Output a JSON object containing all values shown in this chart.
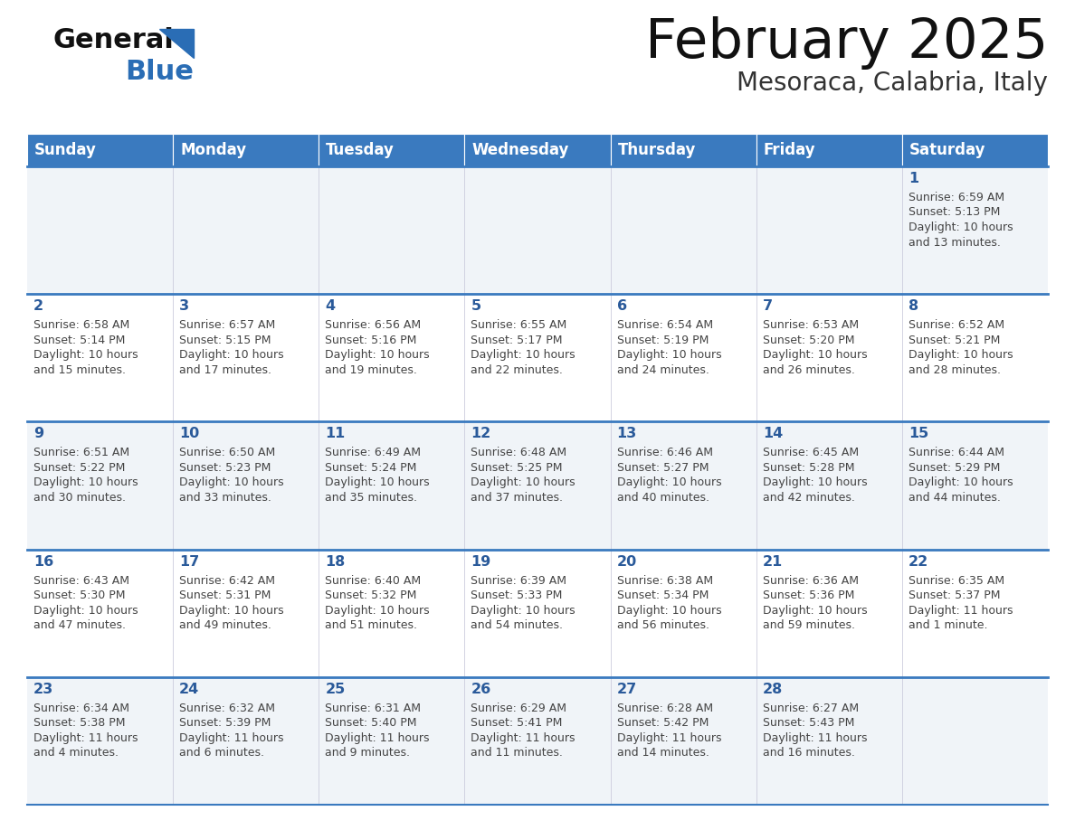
{
  "title": "February 2025",
  "subtitle": "Mesoraca, Calabria, Italy",
  "header_bg_color": "#3a7abf",
  "header_text_color": "#ffffff",
  "cell_bg_odd": "#f0f4f8",
  "cell_bg_even": "#ffffff",
  "day_number_color": "#2a5a9a",
  "info_text_color": "#444444",
  "border_color": "#3a7abf",
  "grid_line_color": "#aaaacc",
  "days_of_week": [
    "Sunday",
    "Monday",
    "Tuesday",
    "Wednesday",
    "Thursday",
    "Friday",
    "Saturday"
  ],
  "calendar_data": [
    [
      null,
      null,
      null,
      null,
      null,
      null,
      {
        "day": 1,
        "sunrise": "6:59 AM",
        "sunset": "5:13 PM",
        "daylight": "10 hours and 13 minutes."
      }
    ],
    [
      {
        "day": 2,
        "sunrise": "6:58 AM",
        "sunset": "5:14 PM",
        "daylight": "10 hours and 15 minutes."
      },
      {
        "day": 3,
        "sunrise": "6:57 AM",
        "sunset": "5:15 PM",
        "daylight": "10 hours and 17 minutes."
      },
      {
        "day": 4,
        "sunrise": "6:56 AM",
        "sunset": "5:16 PM",
        "daylight": "10 hours and 19 minutes."
      },
      {
        "day": 5,
        "sunrise": "6:55 AM",
        "sunset": "5:17 PM",
        "daylight": "10 hours and 22 minutes."
      },
      {
        "day": 6,
        "sunrise": "6:54 AM",
        "sunset": "5:19 PM",
        "daylight": "10 hours and 24 minutes."
      },
      {
        "day": 7,
        "sunrise": "6:53 AM",
        "sunset": "5:20 PM",
        "daylight": "10 hours and 26 minutes."
      },
      {
        "day": 8,
        "sunrise": "6:52 AM",
        "sunset": "5:21 PM",
        "daylight": "10 hours and 28 minutes."
      }
    ],
    [
      {
        "day": 9,
        "sunrise": "6:51 AM",
        "sunset": "5:22 PM",
        "daylight": "10 hours and 30 minutes."
      },
      {
        "day": 10,
        "sunrise": "6:50 AM",
        "sunset": "5:23 PM",
        "daylight": "10 hours and 33 minutes."
      },
      {
        "day": 11,
        "sunrise": "6:49 AM",
        "sunset": "5:24 PM",
        "daylight": "10 hours and 35 minutes."
      },
      {
        "day": 12,
        "sunrise": "6:48 AM",
        "sunset": "5:25 PM",
        "daylight": "10 hours and 37 minutes."
      },
      {
        "day": 13,
        "sunrise": "6:46 AM",
        "sunset": "5:27 PM",
        "daylight": "10 hours and 40 minutes."
      },
      {
        "day": 14,
        "sunrise": "6:45 AM",
        "sunset": "5:28 PM",
        "daylight": "10 hours and 42 minutes."
      },
      {
        "day": 15,
        "sunrise": "6:44 AM",
        "sunset": "5:29 PM",
        "daylight": "10 hours and 44 minutes."
      }
    ],
    [
      {
        "day": 16,
        "sunrise": "6:43 AM",
        "sunset": "5:30 PM",
        "daylight": "10 hours and 47 minutes."
      },
      {
        "day": 17,
        "sunrise": "6:42 AM",
        "sunset": "5:31 PM",
        "daylight": "10 hours and 49 minutes."
      },
      {
        "day": 18,
        "sunrise": "6:40 AM",
        "sunset": "5:32 PM",
        "daylight": "10 hours and 51 minutes."
      },
      {
        "day": 19,
        "sunrise": "6:39 AM",
        "sunset": "5:33 PM",
        "daylight": "10 hours and 54 minutes."
      },
      {
        "day": 20,
        "sunrise": "6:38 AM",
        "sunset": "5:34 PM",
        "daylight": "10 hours and 56 minutes."
      },
      {
        "day": 21,
        "sunrise": "6:36 AM",
        "sunset": "5:36 PM",
        "daylight": "10 hours and 59 minutes."
      },
      {
        "day": 22,
        "sunrise": "6:35 AM",
        "sunset": "5:37 PM",
        "daylight": "11 hours and 1 minute."
      }
    ],
    [
      {
        "day": 23,
        "sunrise": "6:34 AM",
        "sunset": "5:38 PM",
        "daylight": "11 hours and 4 minutes."
      },
      {
        "day": 24,
        "sunrise": "6:32 AM",
        "sunset": "5:39 PM",
        "daylight": "11 hours and 6 minutes."
      },
      {
        "day": 25,
        "sunrise": "6:31 AM",
        "sunset": "5:40 PM",
        "daylight": "11 hours and 9 minutes."
      },
      {
        "day": 26,
        "sunrise": "6:29 AM",
        "sunset": "5:41 PM",
        "daylight": "11 hours and 11 minutes."
      },
      {
        "day": 27,
        "sunrise": "6:28 AM",
        "sunset": "5:42 PM",
        "daylight": "11 hours and 14 minutes."
      },
      {
        "day": 28,
        "sunrise": "6:27 AM",
        "sunset": "5:43 PM",
        "daylight": "11 hours and 16 minutes."
      },
      null
    ]
  ],
  "logo_general_color": "#111111",
  "logo_blue_color": "#2a6db5",
  "logo_triangle_color": "#2a6db5"
}
